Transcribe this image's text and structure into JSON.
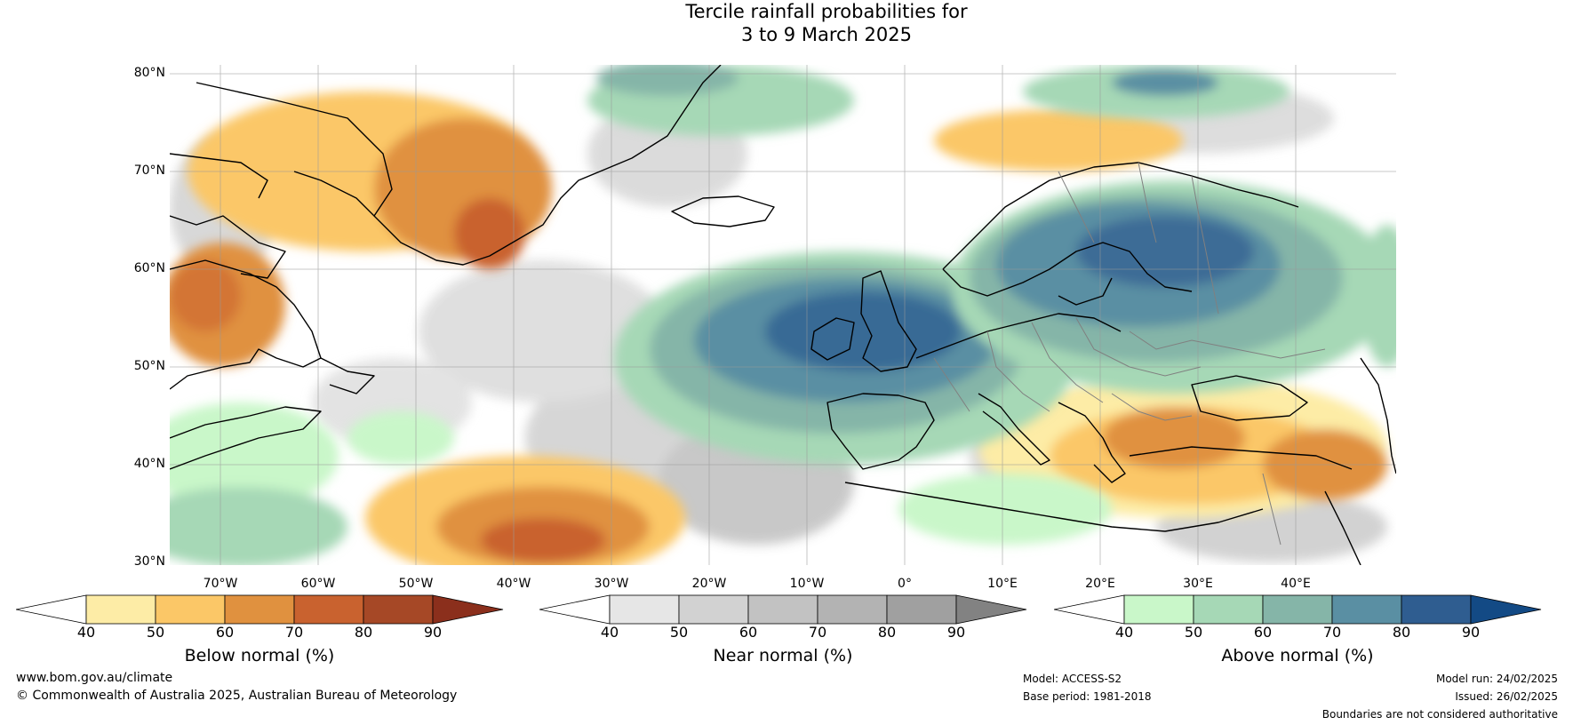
{
  "title": {
    "line1": "Tercile rainfall probabilities for",
    "line2": "3 to 9 March 2025"
  },
  "map": {
    "lat_labels": [
      "80°N",
      "70°N",
      "60°N",
      "50°N",
      "40°N",
      "30°N"
    ],
    "lon_labels": [
      "70°W",
      "60°W",
      "50°W",
      "40°W",
      "30°W",
      "20°W",
      "10°W",
      "0°",
      "10°E",
      "20°E",
      "30°E",
      "40°E"
    ],
    "lat_range": [
      30,
      81
    ],
    "lon_range": [
      -80,
      45
    ]
  },
  "colorbars": [
    {
      "id": "below",
      "title": "Below normal (%)",
      "ticks": [
        "40",
        "50",
        "60",
        "70",
        "80",
        "90"
      ],
      "colors": [
        "#ffffff",
        "#fdeca6",
        "#fbc767",
        "#e0913f",
        "#c9622f",
        "#a64826",
        "#8b2f1c"
      ]
    },
    {
      "id": "near",
      "title": "Near normal (%)",
      "ticks": [
        "40",
        "50",
        "60",
        "70",
        "80",
        "90"
      ],
      "colors": [
        "#ffffff",
        "#e6e6e6",
        "#d2d2d2",
        "#c2c2c2",
        "#b3b3b3",
        "#a0a0a0",
        "#828282"
      ]
    },
    {
      "id": "above",
      "title": "Above normal (%)",
      "ticks": [
        "40",
        "50",
        "60",
        "70",
        "80",
        "90"
      ],
      "colors": [
        "#ffffff",
        "#c9f7c9",
        "#a6d8b6",
        "#85b5a8",
        "#5a8fa3",
        "#2f5d90",
        "#134a85"
      ]
    }
  ],
  "footer": {
    "website": "www.bom.gov.au/climate",
    "copyright": "© Commonwealth of Australia 2025, Australian Bureau of Meteorology",
    "model": "Model: ACCESS-S2",
    "base_period": "Base period: 1981-2018",
    "model_run": "Model run: 24/02/2025",
    "issued": "Issued: 26/02/2025",
    "disclaimer": "Boundaries are not considered authoritative"
  }
}
